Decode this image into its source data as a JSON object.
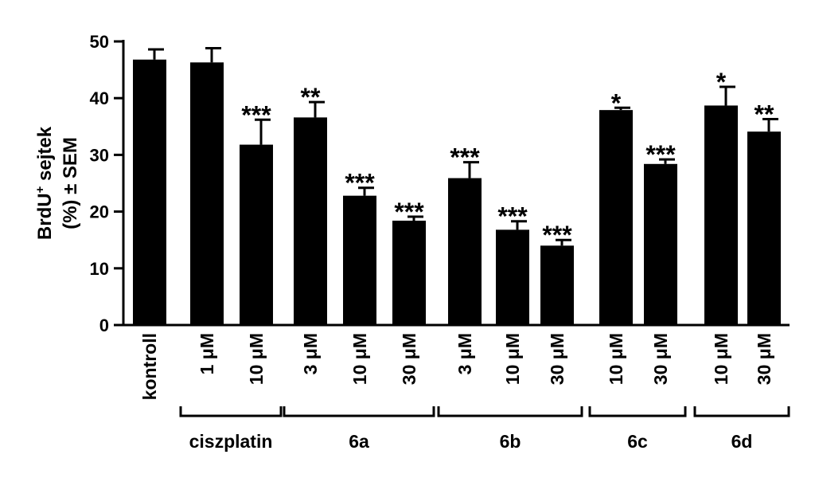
{
  "chart_data": {
    "type": "bar",
    "ylabel_line1": "BrdU",
    "ylabel_sup": "+",
    "ylabel_line1_rest": " sejtek",
    "ylabel_line2": "(%) ± SEM",
    "ylim": [
      0,
      50
    ],
    "yticks": [
      "0",
      "10",
      "20",
      "30",
      "40",
      "50"
    ],
    "categories": [
      "kontroll",
      "1 μM",
      "10 μM",
      "3 μM",
      "10 μM",
      "30 μM",
      "3 μM",
      "10 μM",
      "30 μM",
      "10 μM",
      "30 μM",
      "10 μM",
      "30 μM"
    ],
    "values": [
      46.8,
      46.3,
      31.8,
      36.6,
      22.8,
      18.4,
      25.9,
      16.8,
      14.0,
      37.9,
      28.4,
      38.7,
      34.1
    ],
    "errors": [
      1.8,
      2.5,
      4.4,
      2.7,
      1.4,
      0.7,
      2.8,
      1.5,
      1.0,
      0.4,
      0.8,
      3.3,
      2.2
    ],
    "significance": [
      "",
      "",
      "***",
      "**",
      "***",
      "***",
      "***",
      "***",
      "***",
      "*",
      "***",
      "*",
      "**"
    ],
    "groups": [
      {
        "label": "ciszplatin",
        "start": 1,
        "end": 2
      },
      {
        "label": "6a",
        "start": 3,
        "end": 5
      },
      {
        "label": "6b",
        "start": 6,
        "end": 8
      },
      {
        "label": "6c",
        "start": 9,
        "end": 10
      },
      {
        "label": "6d",
        "start": 11,
        "end": 12
      }
    ],
    "bar_color": "#000000"
  }
}
